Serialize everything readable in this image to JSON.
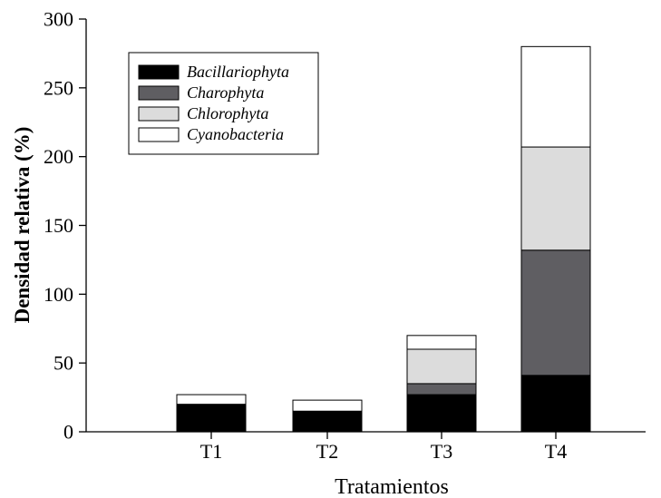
{
  "chart_data": {
    "type": "bar",
    "stacked": true,
    "title": "",
    "xlabel": "Tratamientos",
    "ylabel": "Densidad relativa (%)",
    "ylim": [
      0,
      300
    ],
    "yticks": [
      "0",
      "50",
      "100",
      "150",
      "200",
      "250",
      "300"
    ],
    "categories": [
      "T1",
      "T2",
      "T3",
      "T4"
    ],
    "series": [
      {
        "name": "Bacillariophyta",
        "values": [
          20,
          15,
          27,
          41
        ],
        "color": "#000000"
      },
      {
        "name": "Charophyta",
        "values": [
          0,
          0,
          8,
          91
        ],
        "color": "#5f5e62"
      },
      {
        "name": "Chlorophyta",
        "values": [
          0,
          0,
          25,
          75
        ],
        "color": "#dcdcdc"
      },
      {
        "name": "Cyanobacteria",
        "values": [
          7,
          8,
          10,
          73
        ],
        "color": "#ffffff"
      }
    ],
    "legend_position": "top-left",
    "grid": false
  }
}
